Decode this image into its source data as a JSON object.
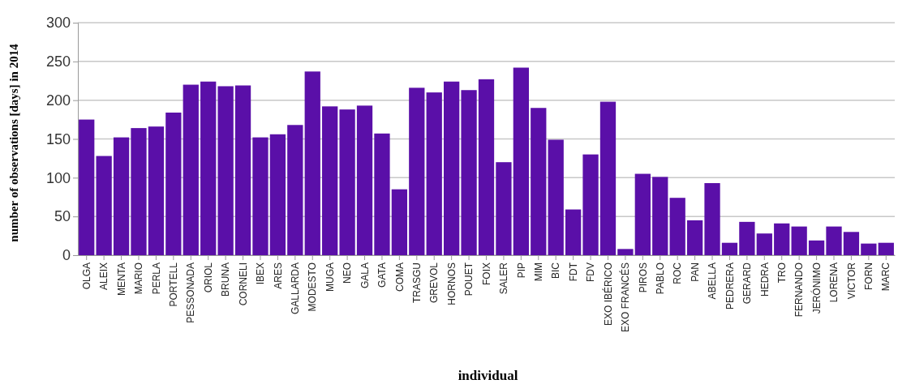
{
  "chart_data": {
    "type": "bar",
    "xlabel": "individual",
    "ylabel": "number of observations [days] in 2014",
    "categories": [
      "OLGA",
      "ALEIX",
      "MENTA",
      "MARIO",
      "PERLA",
      "PORTELL",
      "PESSONADA",
      "ORIOL",
      "BRUNA",
      "CORNELI",
      "IBEX",
      "ARES",
      "GALLARDA",
      "MODESTO",
      "MUGA",
      "NEO",
      "GALA",
      "GATA",
      "COMA",
      "TRASGU",
      "GREVOL",
      "HORNOS",
      "POUET",
      "FOIX",
      "SALER",
      "PIP",
      "MIM",
      "BIC",
      "FDT",
      "FDV",
      "EXO IBÉRICO",
      "EXO FRANCÉS",
      "PIROS",
      "PABLO",
      "ROC",
      "PAN",
      "ABELLA",
      "PEDRERA",
      "GERARD",
      "HEDRA",
      "TRO",
      "FERNANDO",
      "JERÓNIMO",
      "LORENA",
      "VICTOR",
      "FORN",
      "MARC"
    ],
    "values": [
      175,
      128,
      152,
      164,
      166,
      184,
      220,
      224,
      218,
      219,
      152,
      156,
      168,
      237,
      192,
      188,
      193,
      157,
      85,
      216,
      210,
      224,
      213,
      227,
      120,
      242,
      190,
      149,
      59,
      130,
      198,
      8,
      105,
      101,
      74,
      45,
      93,
      16,
      43,
      28,
      41,
      37,
      19,
      37,
      30,
      15,
      16
    ],
    "color": "#5a0fa8",
    "ylim": [
      0,
      300
    ],
    "yticks": [
      0,
      50,
      100,
      150,
      200,
      250,
      300
    ],
    "grid": "y"
  }
}
